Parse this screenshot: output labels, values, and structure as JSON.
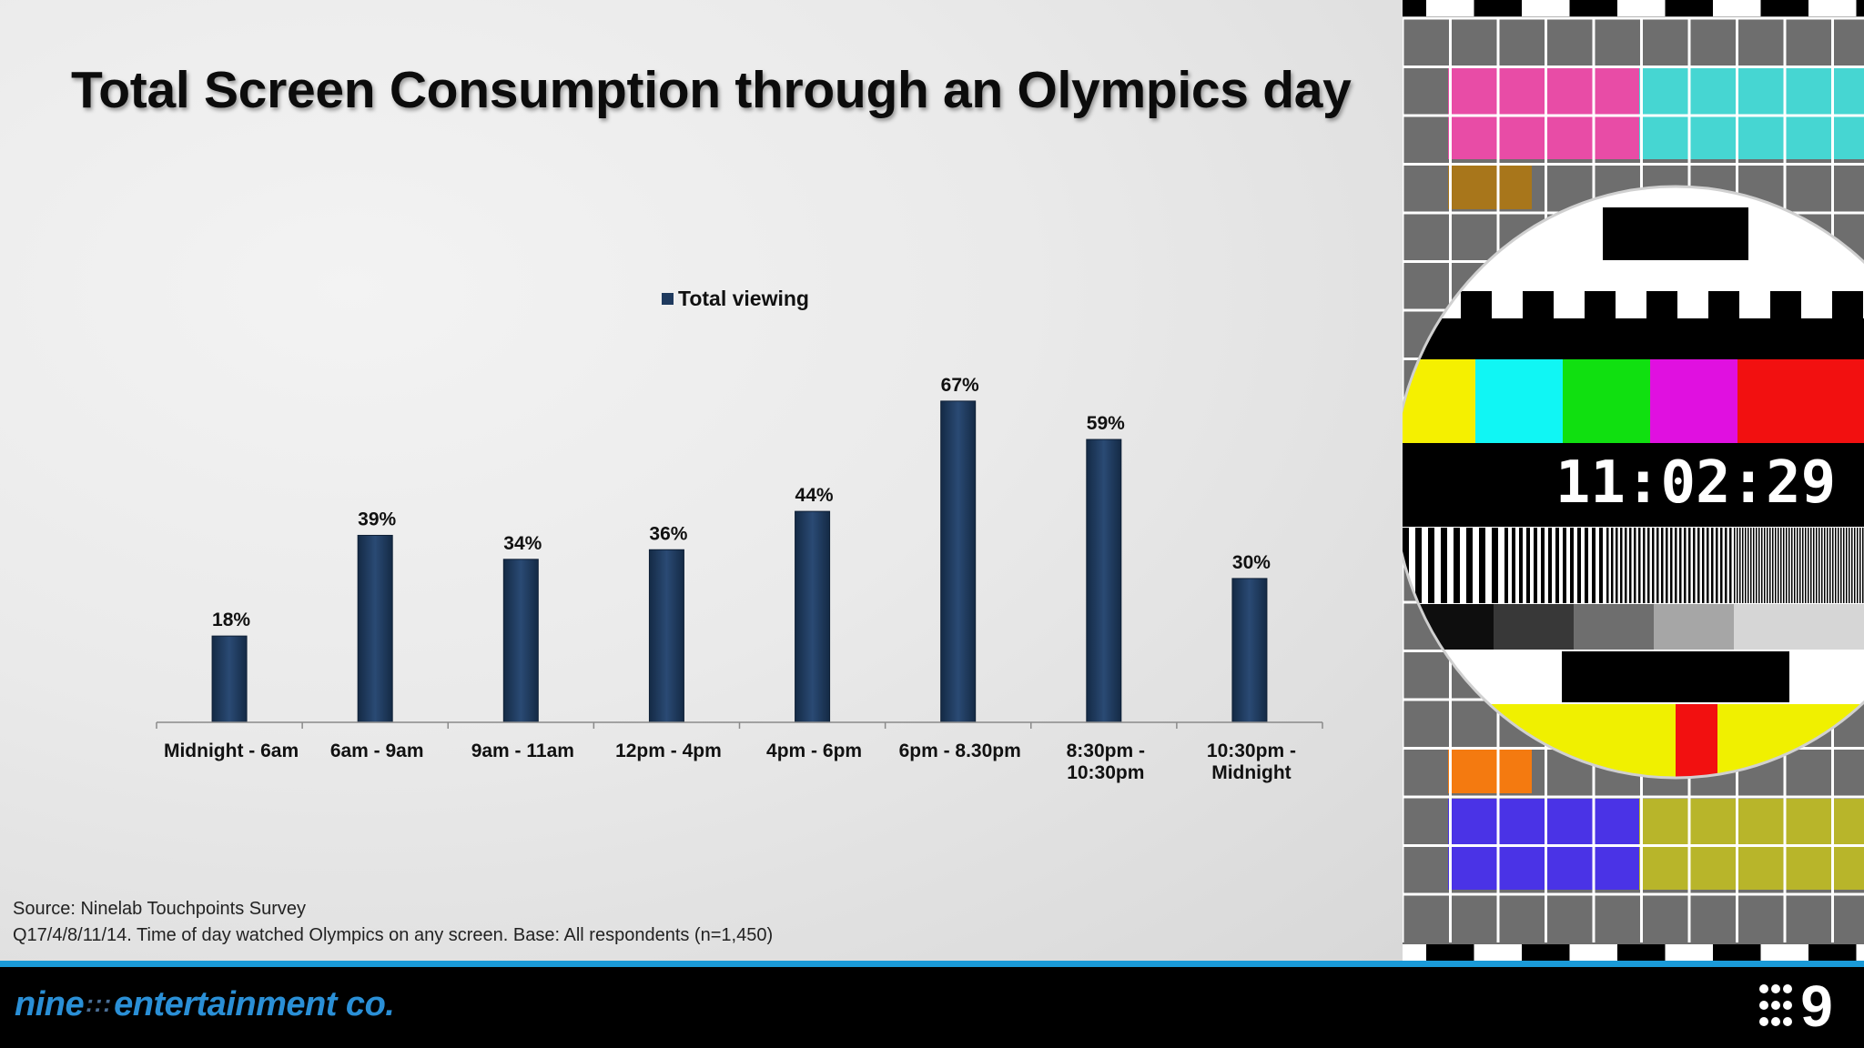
{
  "title": "Total Screen Consumption through an Olympics day",
  "chart_data": {
    "type": "bar",
    "title": "Total Screen Consumption through an Olympics day",
    "categories": [
      "Midnight - 6am",
      "6am - 9am",
      "9am - 11am",
      "12pm - 4pm",
      "4pm - 6pm",
      "6pm - 8.30pm",
      "8:30pm - 10:30pm",
      "10:30pm - Midnight"
    ],
    "category_lines": [
      [
        "Midnight - 6am"
      ],
      [
        "6am - 9am"
      ],
      [
        "9am - 11am"
      ],
      [
        "12pm - 4pm"
      ],
      [
        "4pm - 6pm"
      ],
      [
        "6pm - 8.30pm"
      ],
      [
        "8:30pm -",
        "10:30pm"
      ],
      [
        "10:30pm -",
        "Midnight"
      ]
    ],
    "series": [
      {
        "name": "Total viewing",
        "values": [
          18,
          39,
          34,
          36,
          44,
          67,
          59,
          30
        ],
        "color": "#1f3a5e"
      }
    ],
    "data_labels": [
      "18%",
      "39%",
      "34%",
      "36%",
      "44%",
      "67%",
      "59%",
      "30%"
    ],
    "ylim": [
      0,
      100
    ],
    "xlabel": "",
    "ylabel": "",
    "grid": false,
    "legend": "top-center"
  },
  "source": {
    "line1": "Source: Ninelab Touchpoints Survey",
    "line2": "Q17/4/8/11/14. Time of day watched Olympics on any screen. Base: All respondents (n=1,450)"
  },
  "footer": {
    "logo_left_a": "nine",
    "logo_left_dots": ":::",
    "logo_left_b": "entertainment co.",
    "logo_right": "9",
    "accent_color": "#1a9ad8"
  },
  "testcard": {
    "clock": "11:02:29"
  }
}
